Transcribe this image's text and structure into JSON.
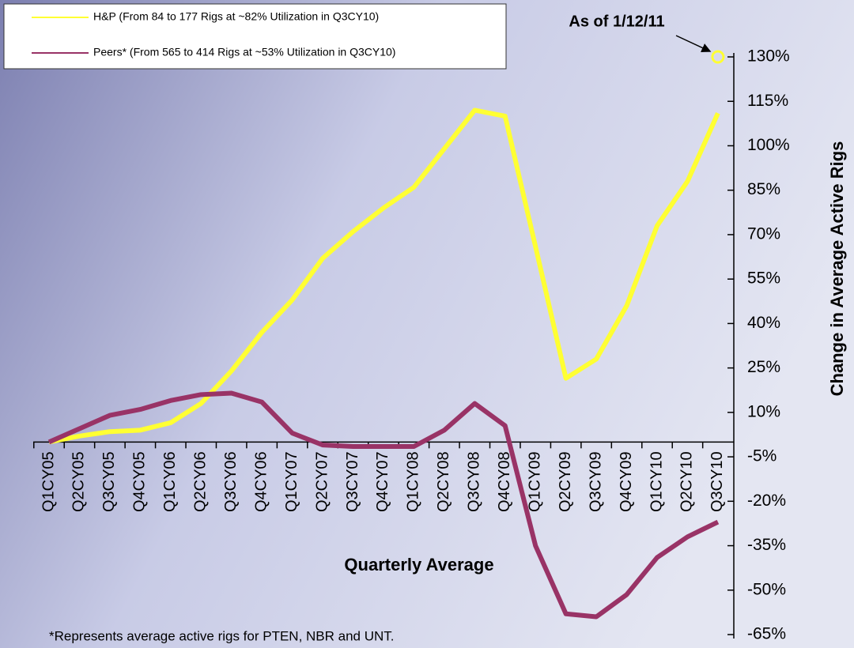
{
  "chart_data": {
    "type": "line",
    "x_label": "Quarterly Average",
    "y_label": "Change in Average Active Rigs",
    "footnote": "*Represents average active rigs for PTEN, NBR and UNT.",
    "annotation": {
      "text": "As of 1/12/11",
      "value": 130
    },
    "categories": [
      "Q1CY05",
      "Q2CY05",
      "Q3CY05",
      "Q4CY05",
      "Q1CY06",
      "Q2CY06",
      "Q3CY06",
      "Q4CY06",
      "Q1CY07",
      "Q2CY07",
      "Q3CY07",
      "Q4CY07",
      "Q1CY08",
      "Q2CY08",
      "Q3CY08",
      "Q4CY08",
      "Q1CY09",
      "Q2CY09",
      "Q3CY09",
      "Q4CY09",
      "Q1CY10",
      "Q2CY10",
      "Q3CY10"
    ],
    "series": [
      {
        "name": "H&P (From 84 to 177 Rigs at ~82% Utilization in Q3CY10)",
        "color": "#ffff33",
        "values": [
          0,
          2,
          3.5,
          4,
          6.5,
          13,
          24,
          37,
          48,
          62,
          71,
          79,
          86,
          99,
          112,
          110,
          66,
          21.5,
          28,
          46,
          73,
          88,
          111
        ]
      },
      {
        "name": "Peers* (From 565 to 414 Rigs at ~53% Utilization in Q3CY10)",
        "color": "#993366",
        "values": [
          0,
          4.5,
          9,
          11,
          14,
          16,
          16.5,
          13.5,
          3,
          -1,
          -1.5,
          -1.5,
          -1.5,
          4,
          13,
          5.5,
          -35,
          -58,
          -59,
          -51.5,
          -39,
          -32,
          -27
        ]
      }
    ],
    "ylim": [
      -65,
      130
    ],
    "yticks": [
      {
        "value": 130,
        "label": "130%"
      },
      {
        "value": 115,
        "label": "115%"
      },
      {
        "value": 100,
        "label": "100%"
      },
      {
        "value": 85,
        "label": "85%"
      },
      {
        "value": 70,
        "label": "70%"
      },
      {
        "value": 55,
        "label": "55%"
      },
      {
        "value": 40,
        "label": "40%"
      },
      {
        "value": 25,
        "label": "25%"
      },
      {
        "value": 10,
        "label": "10%"
      },
      {
        "value": -5,
        "label": "-5%"
      },
      {
        "value": -20,
        "label": "-20%"
      },
      {
        "value": -35,
        "label": "-35%"
      },
      {
        "value": -50,
        "label": "-50%"
      },
      {
        "value": -65,
        "label": "-65%"
      }
    ]
  }
}
